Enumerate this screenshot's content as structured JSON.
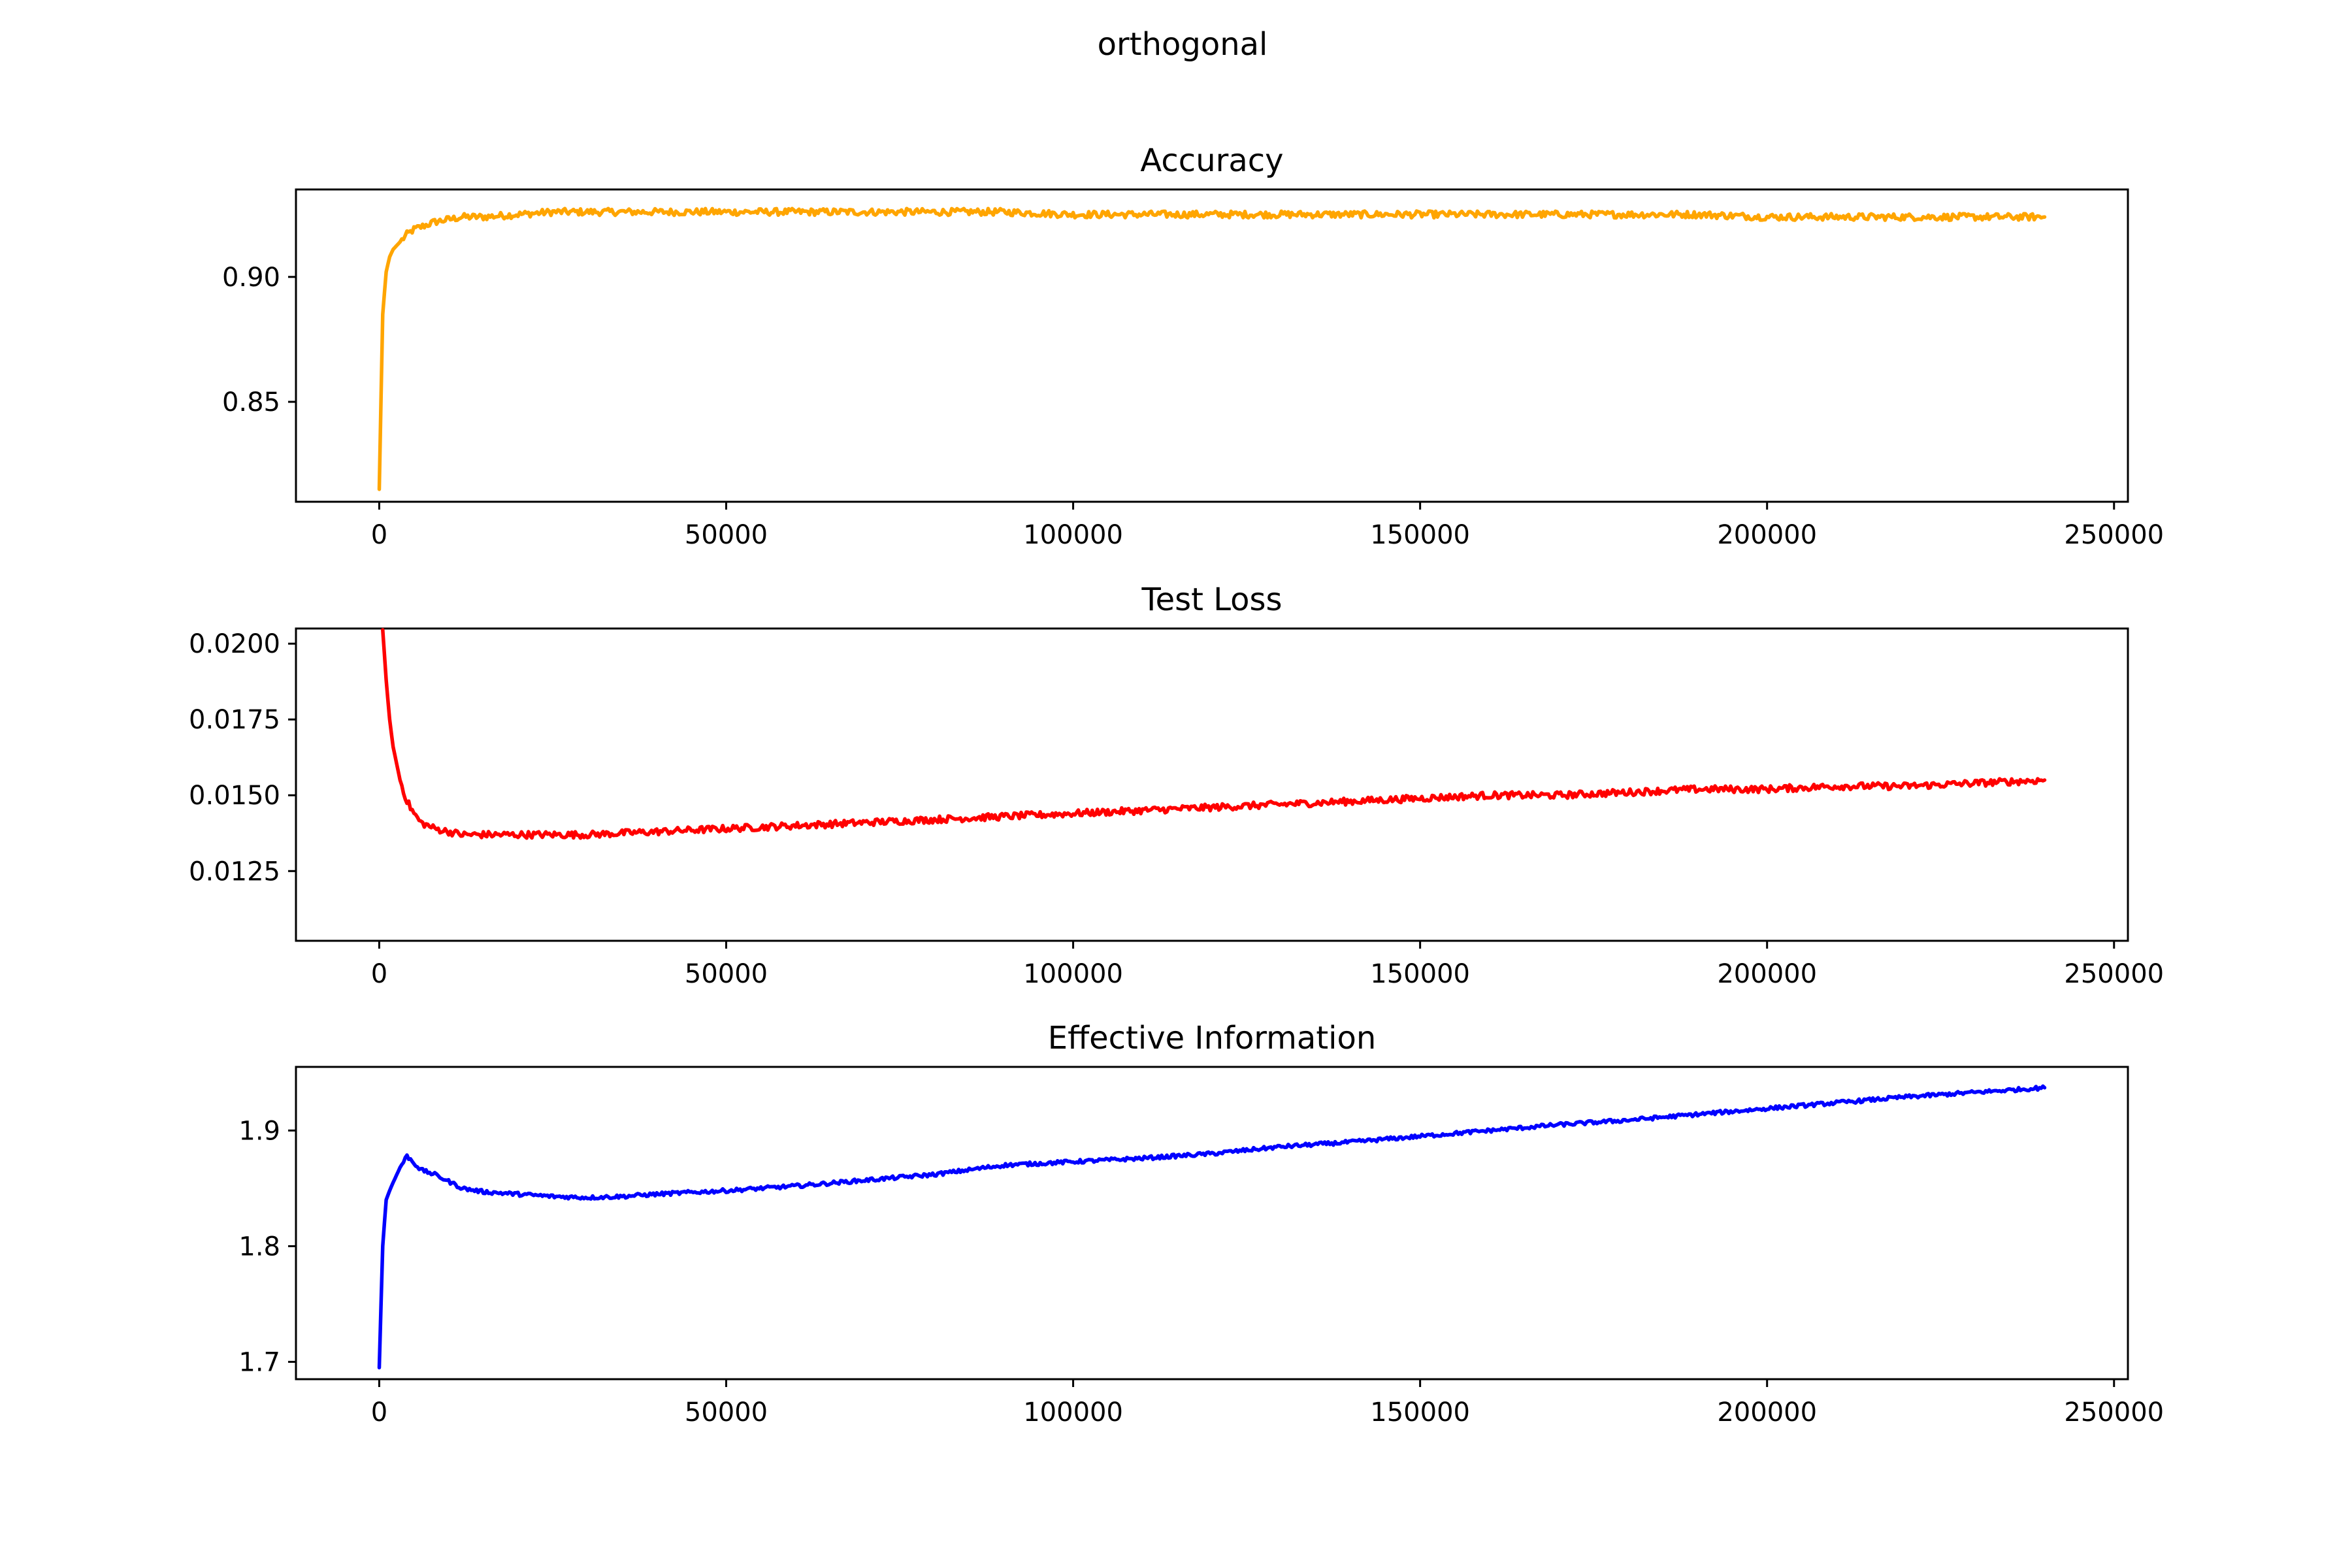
{
  "figure_title": "orthogonal",
  "chart_data": [
    {
      "type": "line",
      "title": "Accuracy",
      "xlabel": "",
      "ylabel": "",
      "color": "#ffa500",
      "xlim": [
        -12000,
        252000
      ],
      "ylim": [
        0.81,
        0.935
      ],
      "xticks": [
        0,
        50000,
        100000,
        150000,
        200000,
        250000
      ],
      "xtick_labels": [
        "0",
        "50000",
        "100000",
        "150000",
        "200000",
        "250000"
      ],
      "yticks": [
        0.85,
        0.9
      ],
      "ytick_labels": [
        "0.85",
        "0.90"
      ],
      "grid": false,
      "legend": "none",
      "series": [
        {
          "x": [
            0,
            500,
            1000,
            1500,
            2000,
            3000,
            4000,
            5000,
            6000,
            8000,
            10000,
            12000,
            15000,
            20000,
            25000,
            30000,
            40000,
            50000,
            60000,
            70000,
            80000,
            90000,
            100000,
            110000,
            120000,
            130000,
            140000,
            150000,
            160000,
            170000,
            180000,
            190000,
            200000,
            210000,
            220000,
            230000,
            240000
          ],
          "y": [
            0.815,
            0.885,
            0.902,
            0.908,
            0.911,
            0.914,
            0.917,
            0.919,
            0.92,
            0.922,
            0.923,
            0.924,
            0.924,
            0.925,
            0.926,
            0.926,
            0.926,
            0.926,
            0.926,
            0.926,
            0.926,
            0.926,
            0.925,
            0.925,
            0.925,
            0.925,
            0.925,
            0.925,
            0.925,
            0.925,
            0.925,
            0.925,
            0.924,
            0.924,
            0.924,
            0.924,
            0.924
          ]
        }
      ]
    },
    {
      "type": "line",
      "title": "Test Loss",
      "xlabel": "",
      "ylabel": "",
      "color": "#ff0000",
      "xlim": [
        -12000,
        252000
      ],
      "ylim": [
        0.0102,
        0.0205
      ],
      "xticks": [
        0,
        50000,
        100000,
        150000,
        200000,
        250000
      ],
      "xtick_labels": [
        "0",
        "50000",
        "100000",
        "150000",
        "200000",
        "250000"
      ],
      "yticks": [
        0.0125,
        0.015,
        0.0175,
        0.02
      ],
      "ytick_labels": [
        "0.0125",
        "0.0150",
        "0.0175",
        "0.0200"
      ],
      "grid": false,
      "legend": "none",
      "series": [
        {
          "x": [
            500,
            1000,
            1500,
            2000,
            3000,
            4000,
            5000,
            6000,
            8000,
            10000,
            12000,
            15000,
            20000,
            25000,
            30000,
            40000,
            50000,
            60000,
            70000,
            80000,
            90000,
            100000,
            110000,
            120000,
            130000,
            140000,
            150000,
            160000,
            170000,
            180000,
            190000,
            200000,
            210000,
            220000,
            230000,
            240000
          ],
          "y": [
            0.0205,
            0.0188,
            0.0175,
            0.0166,
            0.0155,
            0.0148,
            0.0144,
            0.0141,
            0.0139,
            0.0138,
            0.0137,
            0.0137,
            0.0137,
            0.0137,
            0.0137,
            0.0138,
            0.0139,
            0.014,
            0.0141,
            0.0142,
            0.0143,
            0.0144,
            0.0145,
            0.0146,
            0.0147,
            0.0148,
            0.0149,
            0.015,
            0.015,
            0.0151,
            0.0152,
            0.0152,
            0.0153,
            0.0153,
            0.0154,
            0.0155
          ]
        }
      ]
    },
    {
      "type": "line",
      "title": "Effective Information",
      "xlabel": "",
      "ylabel": "",
      "color": "#0000ff",
      "xlim": [
        -12000,
        252000
      ],
      "ylim": [
        1.685,
        1.955
      ],
      "xticks": [
        0,
        50000,
        100000,
        150000,
        200000,
        250000
      ],
      "xtick_labels": [
        "0",
        "50000",
        "100000",
        "150000",
        "200000",
        "250000"
      ],
      "yticks": [
        1.7,
        1.8,
        1.9
      ],
      "ytick_labels": [
        "1.7",
        "1.8",
        "1.9"
      ],
      "grid": false,
      "legend": "none",
      "series": [
        {
          "x": [
            0,
            500,
            1000,
            1500,
            2000,
            3000,
            4000,
            5000,
            6000,
            8000,
            10000,
            12000,
            15000,
            20000,
            25000,
            30000,
            35000,
            40000,
            50000,
            60000,
            70000,
            80000,
            90000,
            100000,
            110000,
            120000,
            130000,
            140000,
            150000,
            160000,
            170000,
            180000,
            190000,
            200000,
            210000,
            220000,
            230000,
            240000
          ],
          "y": [
            1.695,
            1.8,
            1.84,
            1.848,
            1.855,
            1.868,
            1.878,
            1.872,
            1.866,
            1.862,
            1.856,
            1.85,
            1.847,
            1.845,
            1.843,
            1.842,
            1.843,
            1.845,
            1.848,
            1.852,
            1.857,
            1.862,
            1.87,
            1.873,
            1.876,
            1.88,
            1.886,
            1.89,
            1.895,
            1.9,
            1.905,
            1.909,
            1.914,
            1.919,
            1.924,
            1.929,
            1.933,
            1.937
          ]
        }
      ]
    }
  ]
}
